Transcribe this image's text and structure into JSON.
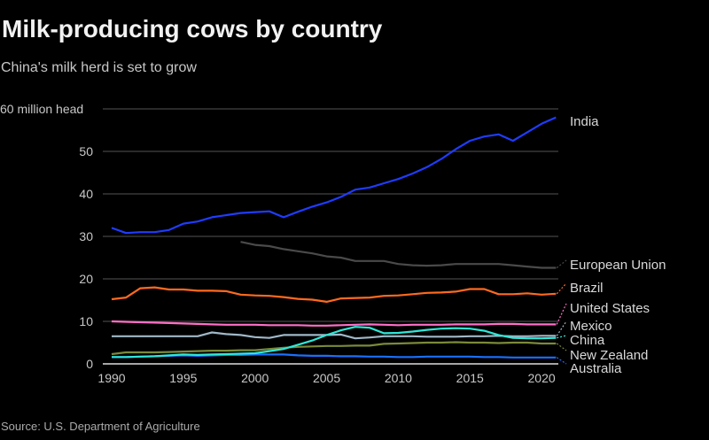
{
  "chart_data": {
    "type": "line",
    "title": "Milk-producing cows by country",
    "subtitle": "China's milk herd is set to grow",
    "ylabel": "million head",
    "y_unit_label": "60 million head",
    "ylim": [
      0,
      60
    ],
    "yticks": [
      0,
      10,
      20,
      30,
      40,
      50
    ],
    "xlim": [
      1990,
      2021
    ],
    "xticks": [
      1990,
      1995,
      2000,
      2005,
      2010,
      2015,
      2020
    ],
    "grid": "horizontal",
    "legend": "direct labels right",
    "source": "Source: U.S. Department of Agriculture",
    "series": [
      {
        "name": "India",
        "color": "#1f3cff",
        "start": 1990,
        "values": [
          32,
          30.8,
          31,
          31,
          31.5,
          33,
          33.5,
          34.5,
          35,
          35.5,
          35.7,
          35.9,
          34.5,
          35.8,
          37,
          38,
          39.3,
          41,
          41.5,
          42.5,
          43.5,
          44.8,
          46.3,
          48.2,
          50.5,
          52.5,
          53.5,
          54,
          52.5,
          54.5,
          56.5,
          58
        ]
      },
      {
        "name": "European Union",
        "color": "#4a4a4a",
        "start": 1999,
        "values": [
          28.7,
          28,
          27.7,
          27,
          26.5,
          26,
          25.3,
          25,
          24.2,
          24.2,
          24.2,
          23.5,
          23.2,
          23.1,
          23.2,
          23.5,
          23.5,
          23.5,
          23.5,
          23.2,
          22.9,
          22.6,
          22.6
        ]
      },
      {
        "name": "Brazil",
        "color": "#ff6a1f",
        "start": 1990,
        "values": [
          15.2,
          15.6,
          17.8,
          18,
          17.5,
          17.5,
          17.2,
          17.2,
          17.1,
          16.3,
          16.1,
          16,
          15.7,
          15.3,
          15.1,
          14.6,
          15.4,
          15.5,
          15.6,
          16,
          16.1,
          16.4,
          16.7,
          16.8,
          17,
          17.6,
          17.6,
          16.4,
          16.4,
          16.6,
          16.3,
          16.5
        ]
      },
      {
        "name": "United States",
        "color": "#ff6fc8",
        "start": 1990,
        "values": [
          10,
          9.9,
          9.8,
          9.7,
          9.6,
          9.5,
          9.4,
          9.3,
          9.2,
          9.2,
          9.2,
          9.1,
          9.1,
          9.1,
          9,
          9,
          9.1,
          9.2,
          9.3,
          9.2,
          9.1,
          9.2,
          9.2,
          9.2,
          9.3,
          9.3,
          9.3,
          9.4,
          9.4,
          9.3,
          9.3,
          9.3
        ]
      },
      {
        "name": "Mexico",
        "color": "#9fb8c8",
        "start": 1990,
        "values": [
          6.5,
          6.5,
          6.5,
          6.5,
          6.5,
          6.5,
          6.5,
          7.4,
          7,
          6.8,
          6.3,
          6.1,
          6.8,
          6.8,
          6.8,
          6.8,
          6.9,
          6,
          6.2,
          6.5,
          6.5,
          6.5,
          6.4,
          6.4,
          6.4,
          6.5,
          6.5,
          6.6,
          6.5,
          6.5,
          6.6,
          6.6
        ]
      },
      {
        "name": "China",
        "color": "#2ee8d8",
        "start": 1990,
        "values": [
          1.6,
          1.6,
          1.7,
          1.8,
          2,
          2.2,
          2.1,
          2.2,
          2.3,
          2.4,
          2.5,
          3,
          3.5,
          4.5,
          5.5,
          6.8,
          7.9,
          8.7,
          8.5,
          7.2,
          7.3,
          7.6,
          8,
          8.3,
          8.4,
          8.3,
          7.8,
          6.8,
          6.1,
          6,
          6,
          6.1
        ]
      },
      {
        "name": "New Zealand",
        "color": "#7a8a3a",
        "start": 1990,
        "values": [
          2.3,
          2.7,
          2.7,
          2.7,
          2.8,
          2.9,
          3,
          3.1,
          3.1,
          3.2,
          3.2,
          3.5,
          3.8,
          4,
          4.1,
          4.2,
          4.2,
          4.3,
          4.3,
          4.7,
          4.8,
          4.9,
          5,
          5,
          5.1,
          5,
          5,
          4.9,
          5,
          5,
          4.8,
          4.8
        ]
      },
      {
        "name": "Australia",
        "color": "#1a70ff",
        "start": 1990,
        "values": [
          1.6,
          1.6,
          1.7,
          1.8,
          1.9,
          2,
          1.9,
          2,
          2.1,
          2.1,
          2.2,
          2.2,
          2.2,
          2,
          1.9,
          1.9,
          1.8,
          1.8,
          1.7,
          1.7,
          1.6,
          1.6,
          1.7,
          1.7,
          1.7,
          1.7,
          1.6,
          1.6,
          1.5,
          1.5,
          1.5,
          1.5
        ]
      }
    ]
  }
}
